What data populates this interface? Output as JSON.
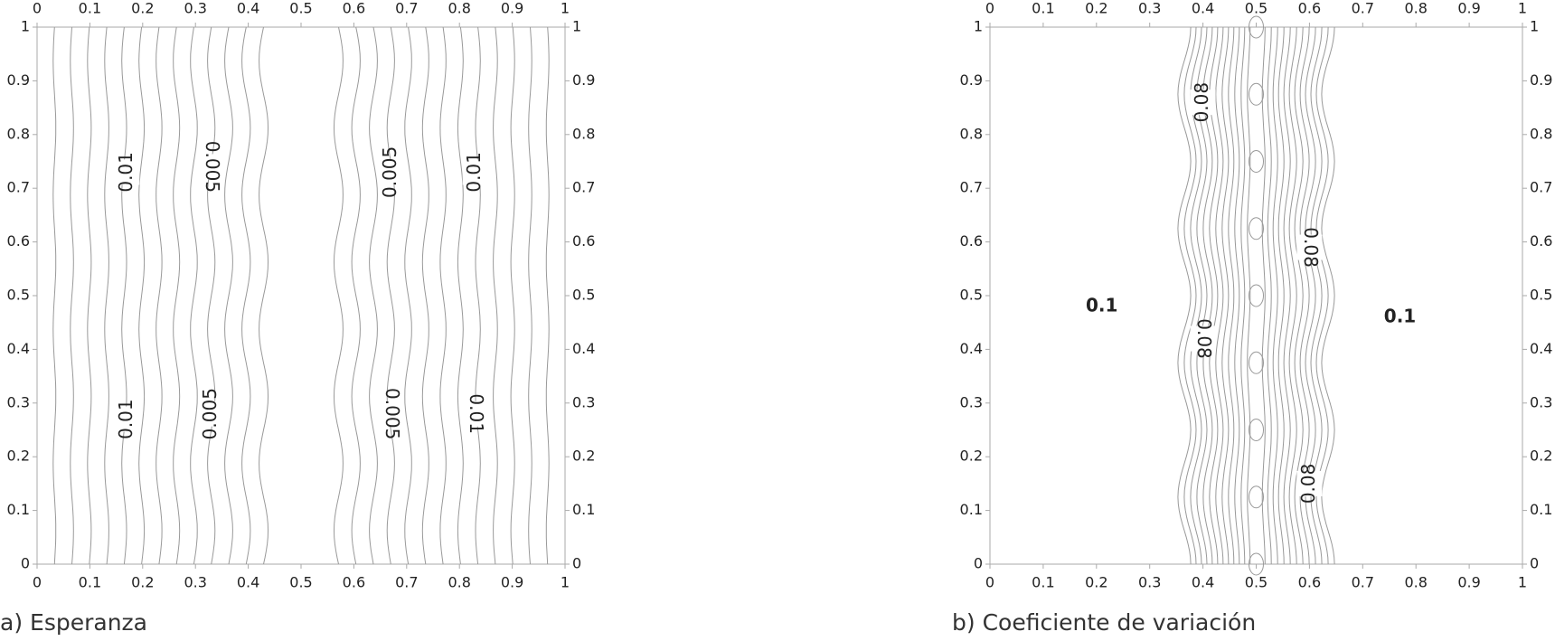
{
  "chart_data": [
    {
      "type": "contour",
      "title": "a) Esperanza",
      "xlim": [
        0,
        1
      ],
      "ylim": [
        0,
        1
      ],
      "xticks": [
        0,
        0.1,
        0.2,
        0.3,
        0.4,
        0.5,
        0.6,
        0.7,
        0.8,
        0.9,
        1
      ],
      "yticks": [
        0,
        0.1,
        0.2,
        0.3,
        0.4,
        0.5,
        0.6,
        0.7,
        0.8,
        0.9,
        1
      ],
      "contour_labels": [
        0.01,
        0.01,
        0.005,
        0.005,
        0.005,
        0.005,
        0.01,
        0.01
      ]
    },
    {
      "type": "contour",
      "title": "b) Coeficiente de variación",
      "xlim": [
        0,
        1
      ],
      "ylim": [
        0,
        1
      ],
      "xticks": [
        0,
        0.1,
        0.2,
        0.3,
        0.4,
        0.5,
        0.6,
        0.7,
        0.8,
        0.9,
        1
      ],
      "yticks": [
        0,
        0.1,
        0.2,
        0.3,
        0.4,
        0.5,
        0.6,
        0.7,
        0.8,
        0.9,
        1
      ],
      "contour_labels": [
        0.08,
        0.08,
        0.08,
        0.08,
        0.1,
        0.1
      ]
    }
  ]
}
